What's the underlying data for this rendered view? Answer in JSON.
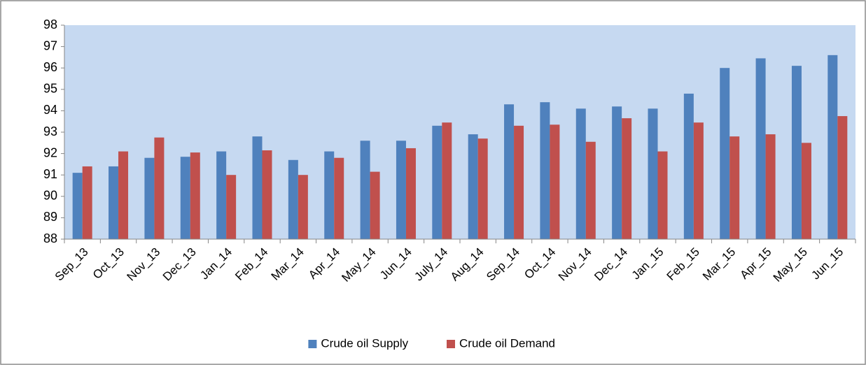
{
  "chart_data": {
    "type": "bar",
    "categories": [
      "Sep_13",
      "Oct_13",
      "Nov_13",
      "Dec_13",
      "Jan_14",
      "Feb_14",
      "Mar_14",
      "Apr_14",
      "May_14",
      "Jun_14",
      "July_14",
      "Aug_14",
      "Sep_14",
      "Oct_14",
      "Nov_14",
      "Dec_14",
      "Jan_15",
      "Feb_15",
      "Mar_15",
      "Apr_15",
      "May_15",
      "Jun_15"
    ],
    "series": [
      {
        "name": "Crude oil Supply",
        "color": "#4f81bd",
        "values": [
          91.1,
          91.4,
          91.8,
          91.85,
          92.1,
          92.8,
          91.7,
          92.1,
          92.6,
          92.6,
          93.3,
          92.9,
          94.3,
          94.4,
          94.1,
          94.2,
          94.1,
          94.8,
          96.0,
          96.45,
          96.1,
          96.6
        ]
      },
      {
        "name": "Crude oil Demand",
        "color": "#c0504d",
        "values": [
          91.4,
          92.1,
          92.75,
          92.05,
          91.0,
          92.15,
          91.0,
          91.8,
          91.15,
          92.25,
          93.45,
          92.7,
          93.3,
          93.35,
          92.55,
          93.65,
          92.1,
          93.45,
          92.8,
          92.9,
          92.5,
          93.75
        ]
      }
    ],
    "ylim": [
      88,
      98
    ],
    "yticks": [
      88,
      89,
      90,
      91,
      92,
      93,
      94,
      95,
      96,
      97,
      98
    ],
    "grid": false,
    "plot_background": "#c6d9f1",
    "legend": "bottom"
  }
}
